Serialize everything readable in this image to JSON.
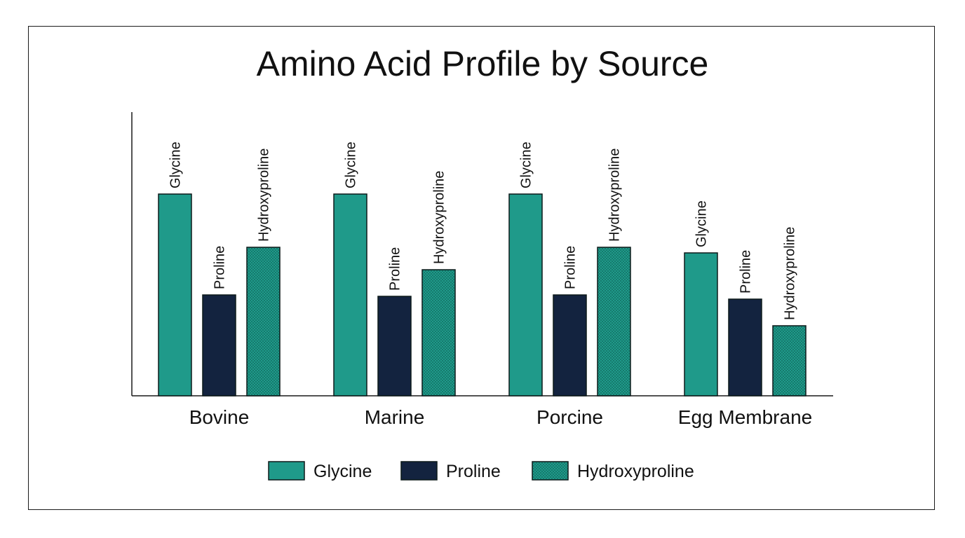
{
  "chart_data": {
    "type": "bar",
    "title": "Amino Acid Profile by Source",
    "xlabel": "",
    "ylabel": "",
    "ylim": [
      0,
      100
    ],
    "grid": false,
    "legend_position": "bottom-center",
    "categories": [
      "Bovine",
      "Marine",
      "Porcine",
      "Egg Membrane"
    ],
    "series": [
      {
        "name": "Glycine",
        "values": [
          72,
          72,
          72,
          51
        ],
        "color": "#1f9a8a",
        "pattern": "solid"
      },
      {
        "name": "Proline",
        "values": [
          36,
          35.5,
          36,
          34.5
        ],
        "color": "#13233f",
        "pattern": "solid"
      },
      {
        "name": "Hydroxyproline",
        "values": [
          53,
          45,
          53,
          25
        ],
        "color": "#1f9a8a",
        "pattern": "checker"
      }
    ],
    "bar_labels": true
  }
}
